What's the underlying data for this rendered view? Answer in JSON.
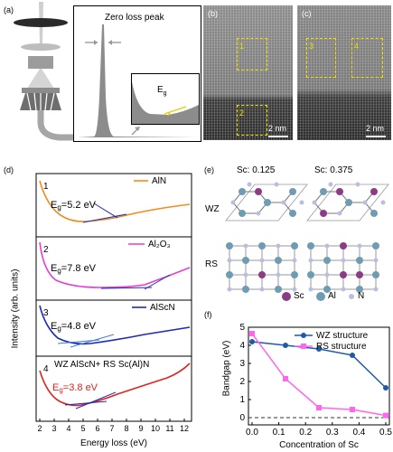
{
  "panels": {
    "a": {
      "label": "(a)",
      "peak_title": "Zero loss peak",
      "inset_label": "E",
      "inset_sub": "g"
    },
    "b": {
      "label": "(b)",
      "box1": "1",
      "box2": "2",
      "scale": "2 nm"
    },
    "c": {
      "label": "(c)",
      "box3": "3",
      "box4": "4",
      "scale": "2 nm"
    },
    "d": {
      "label": "(d)",
      "ylabel": "Intensity (arb. units)",
      "xlabel": "Energy loss (eV)",
      "xticks": [
        "2",
        "3",
        "4",
        "5",
        "6",
        "7",
        "8",
        "9",
        "10",
        "11",
        "12"
      ],
      "subpanels": [
        {
          "num": "1",
          "legend": "AlN",
          "eg_main": "E",
          "eg_sub": "g",
          "eg_val": "=5.2 eV",
          "color": "#f28b1f"
        },
        {
          "num": "2",
          "legend": "Al₂O₃",
          "eg_main": "E",
          "eg_sub": "g",
          "eg_val": "=7.8 eV",
          "color": "#e33fd7"
        },
        {
          "num": "3",
          "legend": "AlScN",
          "eg_main": "E",
          "eg_sub": "g",
          "eg_val": "=4.8 eV",
          "color": "#1e2ab8"
        },
        {
          "num": "4",
          "legend": "WZ AlScN+ RS Sc(Al)N",
          "eg_main": "E",
          "eg_sub": "g",
          "eg_val": "=3.8 eV",
          "color": "#e0231d"
        }
      ]
    },
    "e": {
      "label": "(e)",
      "sc1": "Sc: 0.125",
      "sc2": "Sc: 0.375",
      "wz": "WZ",
      "rs": "RS",
      "legend": [
        "Sc",
        "Al",
        "N"
      ],
      "colors": {
        "sc": "#8a3d82",
        "al": "#6f9bb3",
        "n": "#b9bfe0"
      }
    },
    "f": {
      "label": "(f)",
      "ylabel": "Bandgap (eV)",
      "xlabel": "Concentration of Sc",
      "yticks": [
        "0",
        "1",
        "2",
        "3",
        "4",
        "5"
      ],
      "xticks": [
        "0.0",
        "0.1",
        "0.2",
        "0.3",
        "0.4",
        "0.5"
      ]
    }
  },
  "chart_data": {
    "type": "line",
    "xlabel": "Concentration of Sc",
    "ylabel": "Bandgap (eV)",
    "xlim": [
      0,
      0.5
    ],
    "ylim": [
      -0.4,
      5
    ],
    "series": [
      {
        "name": "WZ structure",
        "color": "#1f5aa6",
        "x": [
          0.0,
          0.125,
          0.25,
          0.375,
          0.5
        ],
        "values": [
          4.2,
          4.0,
          3.8,
          3.45,
          1.65
        ]
      },
      {
        "name": "RS structure",
        "color": "#ff66ee",
        "x": [
          0.0,
          0.125,
          0.25,
          0.375,
          0.5
        ],
        "values": [
          4.65,
          2.15,
          0.55,
          0.45,
          0.12
        ]
      }
    ],
    "reference_line": {
      "y": 0,
      "style": "dashed"
    }
  }
}
